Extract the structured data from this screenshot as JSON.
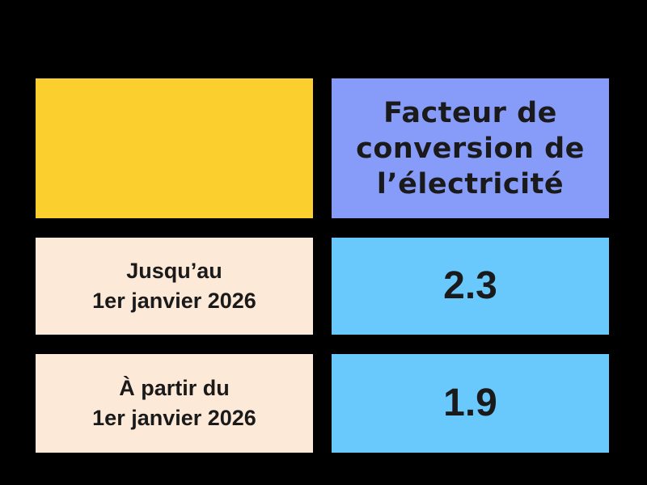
{
  "colors": {
    "background": "#000000",
    "corner": "#FACF2E",
    "header": "#879BF8",
    "label": "#FDE9D8",
    "value": "#69C9FC",
    "text": "#1A1A1A"
  },
  "table": {
    "header": {
      "title": "Facteur de conversion de l’électricité",
      "lines": [
        "Facteur de",
        "conversion de",
        "l’électricité"
      ]
    },
    "rows": [
      {
        "label": "Jusqu’au 1er janvier 2026",
        "label_lines": [
          "Jusqu’au",
          "1er janvier 2026"
        ],
        "value": "2.3"
      },
      {
        "label": "À partir du 1er janvier 2026",
        "label_lines": [
          "À partir du",
          "1er janvier 2026"
        ],
        "value": "1.9"
      }
    ]
  },
  "chart_data": {
    "type": "table",
    "title": "Facteur de conversion de l’électricité",
    "columns": [
      "",
      "Facteur de conversion de l’électricité"
    ],
    "rows": [
      [
        "Jusqu’au 1er janvier 2026",
        2.3
      ],
      [
        "À partir du 1er janvier 2026",
        1.9
      ]
    ]
  }
}
